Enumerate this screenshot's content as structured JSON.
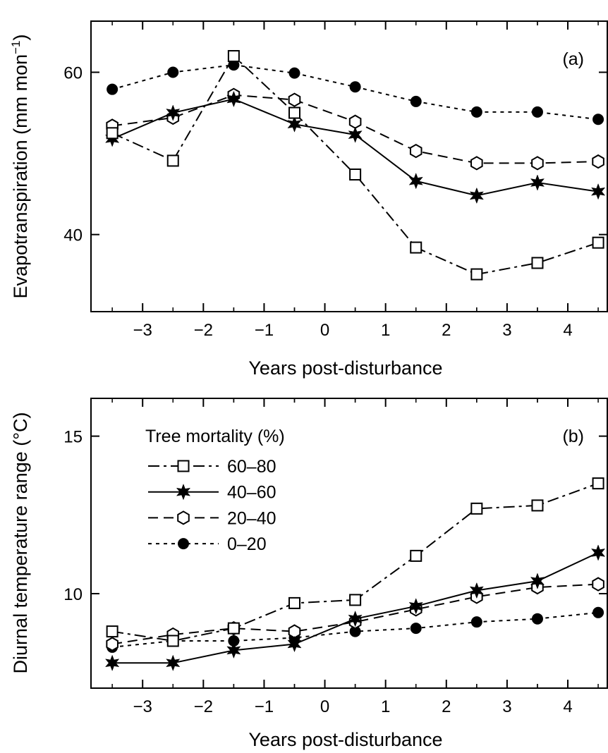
{
  "chart_data": [
    {
      "type": "line",
      "panel_label": "(a)",
      "xlabel": "Years post-disturbance",
      "ylabel": "Evapotranspiration (mm mon",
      "ylabel_sup": "−1",
      "ylabel_close": ")",
      "xlim": [
        -3.85,
        4.65
      ],
      "ylim": [
        30.5,
        66.3
      ],
      "xticks": [
        -3,
        -2,
        -1,
        0,
        1,
        2,
        3,
        4
      ],
      "xtick_labels": [
        "−3",
        "−2",
        "−1",
        "0",
        "1",
        "2",
        "3",
        "4"
      ],
      "yticks": [
        40,
        60
      ],
      "ytick_labels": [
        "40",
        "60"
      ],
      "legend": "none",
      "x": [
        -3.5,
        -2.5,
        -1.5,
        -0.5,
        0.5,
        1.5,
        2.5,
        3.5,
        4.5
      ],
      "series": [
        {
          "key": "s60_80",
          "values": [
            52.5,
            49.1,
            62.0,
            55.0,
            47.4,
            38.4,
            35.1,
            36.5,
            39.0
          ]
        },
        {
          "key": "s40_60",
          "values": [
            51.8,
            55.0,
            56.7,
            53.6,
            52.3,
            46.6,
            44.8,
            46.4,
            45.3
          ]
        },
        {
          "key": "s20_40",
          "values": [
            53.4,
            54.4,
            57.2,
            56.6,
            53.9,
            50.3,
            48.8,
            48.8,
            49.0
          ]
        },
        {
          "key": "s0_20",
          "values": [
            57.9,
            60.0,
            60.9,
            59.9,
            58.2,
            56.4,
            55.1,
            55.1,
            54.2
          ]
        }
      ]
    },
    {
      "type": "line",
      "panel_label": "(b)",
      "xlabel": "Years post-disturbance",
      "ylabel": "Diurnal temperature range (°C)",
      "xlim": [
        -3.85,
        4.65
      ],
      "ylim": [
        7.0,
        16.2
      ],
      "xticks": [
        -3,
        -2,
        -1,
        0,
        1,
        2,
        3,
        4
      ],
      "xtick_labels": [
        "−3",
        "−2",
        "−1",
        "0",
        "1",
        "2",
        "3",
        "4"
      ],
      "yticks": [
        10,
        15
      ],
      "ytick_labels": [
        "10",
        "15"
      ],
      "legend": "top-left",
      "legend_title": "Tree mortality (%)",
      "x": [
        -3.5,
        -2.5,
        -1.5,
        -0.5,
        0.5,
        1.5,
        2.5,
        3.5,
        4.5
      ],
      "series": [
        {
          "key": "s60_80",
          "name": "60–80",
          "values": [
            8.8,
            8.5,
            8.9,
            9.7,
            9.8,
            11.2,
            12.7,
            12.8,
            13.5
          ]
        },
        {
          "key": "s40_60",
          "name": "40–60",
          "values": [
            7.8,
            7.8,
            8.2,
            8.4,
            9.2,
            9.6,
            10.1,
            10.4,
            11.3
          ]
        },
        {
          "key": "s20_40",
          "name": "20–40",
          "values": [
            8.4,
            8.7,
            8.9,
            8.8,
            9.1,
            9.5,
            9.9,
            10.2,
            10.3
          ]
        },
        {
          "key": "s0_20",
          "name": "0–20",
          "values": [
            8.3,
            8.5,
            8.5,
            8.6,
            8.8,
            8.9,
            9.1,
            9.2,
            9.4
          ]
        }
      ]
    }
  ],
  "styles": {
    "s60_80": {
      "dash": "dashdot",
      "marker": "open-square",
      "color": "#000000"
    },
    "s40_60": {
      "dash": "solid",
      "marker": "filled-star",
      "color": "#000000"
    },
    "s20_40": {
      "dash": "dash",
      "marker": "open-hexagon",
      "color": "#000000"
    },
    "s0_20": {
      "dash": "dot",
      "marker": "filled-circle",
      "color": "#000000"
    }
  }
}
